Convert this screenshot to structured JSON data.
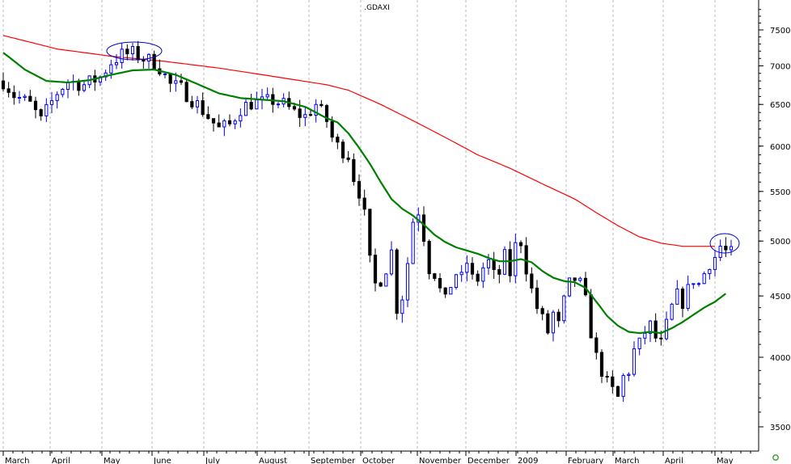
{
  "chart_data": {
    "type": "candlestick",
    "title": ".GDAXI",
    "y_scale": "log",
    "ylim": [
      3450,
      7900
    ],
    "y_ticks": [
      3500,
      4000,
      4500,
      5000,
      5500,
      6000,
      6500,
      7000,
      7500
    ],
    "y_tick_labels": [
      "3500",
      "4000",
      "4500",
      "5000",
      "5500",
      "6000",
      "6500",
      "7000",
      "7500"
    ],
    "x_tick_labels": [
      "March",
      "April",
      "May",
      "June",
      "July",
      "August",
      "September",
      "October",
      "November",
      "December",
      "2009",
      "February",
      "March",
      "April",
      "May"
    ],
    "grid": "vertical-dashed",
    "annotations": [
      "circle around May 2008 peak",
      "circle around May 2009 crossing of red moving average"
    ],
    "series": [
      {
        "kind": "ohlc",
        "up_color": "#0000ee",
        "down_color": "#000000",
        "anchors": [
          [
            0,
            6800
          ],
          [
            2,
            6620
          ],
          [
            5,
            6500
          ],
          [
            7,
            6300
          ],
          [
            10,
            6650
          ],
          [
            12,
            6800
          ],
          [
            15,
            6750
          ],
          [
            18,
            6850
          ],
          [
            20,
            7050
          ],
          [
            22,
            7150
          ],
          [
            24,
            7170
          ],
          [
            26,
            7100
          ],
          [
            28,
            7050
          ],
          [
            29,
            6980
          ],
          [
            31,
            6750
          ],
          [
            33,
            6700
          ],
          [
            36,
            6500
          ],
          [
            38,
            6350
          ],
          [
            40,
            6200
          ],
          [
            42,
            6250
          ],
          [
            44,
            6450
          ],
          [
            46,
            6520
          ],
          [
            48,
            6520
          ],
          [
            50,
            6550
          ],
          [
            52,
            6500
          ],
          [
            54,
            6400
          ],
          [
            56,
            6350
          ],
          [
            58,
            6500
          ],
          [
            60,
            6300
          ],
          [
            61,
            6100
          ],
          [
            62,
            6000
          ],
          [
            64,
            5900
          ],
          [
            65,
            5650
          ],
          [
            66,
            5500
          ],
          [
            67,
            5250
          ],
          [
            68,
            4800
          ],
          [
            69,
            4600
          ],
          [
            70,
            4650
          ],
          [
            71,
            4750
          ],
          [
            72,
            4900
          ],
          [
            73,
            4400
          ],
          [
            74,
            4500
          ],
          [
            75,
            4800
          ],
          [
            76,
            5200
          ],
          [
            77,
            5300
          ],
          [
            78,
            5050
          ],
          [
            79,
            4750
          ],
          [
            80,
            4700
          ],
          [
            81,
            4550
          ],
          [
            82,
            4450
          ],
          [
            83,
            4600
          ],
          [
            84,
            4700
          ],
          [
            85,
            4650
          ],
          [
            86,
            4800
          ],
          [
            87,
            4650
          ],
          [
            88,
            4650
          ],
          [
            89,
            4750
          ],
          [
            90,
            4800
          ],
          [
            91,
            4680
          ],
          [
            92,
            4700
          ],
          [
            93,
            4850
          ],
          [
            94,
            4700
          ],
          [
            95,
            4950
          ],
          [
            96,
            5000
          ],
          [
            97,
            4750
          ],
          [
            98,
            4550
          ],
          [
            99,
            4400
          ],
          [
            100,
            4300
          ],
          [
            101,
            4200
          ],
          [
            102,
            4350
          ],
          [
            103,
            4250
          ],
          [
            104,
            4450
          ],
          [
            105,
            4600
          ],
          [
            106,
            4650
          ],
          [
            107,
            4600
          ],
          [
            108,
            4450
          ],
          [
            109,
            4200
          ],
          [
            110,
            4000
          ],
          [
            111,
            3900
          ],
          [
            112,
            3800
          ],
          [
            113,
            3750
          ],
          [
            114,
            3700
          ],
          [
            115,
            3850
          ],
          [
            116,
            3900
          ],
          [
            117,
            4050
          ],
          [
            118,
            4100
          ],
          [
            119,
            4200
          ],
          [
            120,
            4250
          ],
          [
            121,
            4150
          ],
          [
            122,
            4100
          ],
          [
            123,
            4250
          ],
          [
            124,
            4400
          ],
          [
            125,
            4500
          ],
          [
            126,
            4450
          ],
          [
            127,
            4550
          ],
          [
            128,
            4650
          ],
          [
            129,
            4600
          ],
          [
            130,
            4700
          ],
          [
            131,
            4800
          ],
          [
            132,
            4850
          ],
          [
            133,
            4950
          ],
          [
            134,
            4900
          ],
          [
            135,
            4880
          ]
        ],
        "bar_count": 136,
        "bar_spacing_note": "weekly-like sampling, interpolated daily"
      },
      {
        "kind": "moving-average",
        "color": "#008000",
        "anchors": [
          [
            0,
            7180
          ],
          [
            4,
            6950
          ],
          [
            8,
            6800
          ],
          [
            12,
            6780
          ],
          [
            16,
            6810
          ],
          [
            20,
            6880
          ],
          [
            24,
            6940
          ],
          [
            28,
            6950
          ],
          [
            32,
            6880
          ],
          [
            36,
            6760
          ],
          [
            40,
            6640
          ],
          [
            44,
            6580
          ],
          [
            48,
            6560
          ],
          [
            52,
            6540
          ],
          [
            56,
            6470
          ],
          [
            60,
            6330
          ],
          [
            62,
            6280
          ],
          [
            64,
            6150
          ],
          [
            66,
            5980
          ],
          [
            68,
            5800
          ],
          [
            70,
            5600
          ],
          [
            72,
            5420
          ],
          [
            74,
            5320
          ],
          [
            76,
            5250
          ],
          [
            78,
            5160
          ],
          [
            80,
            5060
          ],
          [
            82,
            4990
          ],
          [
            84,
            4940
          ],
          [
            86,
            4910
          ],
          [
            88,
            4880
          ],
          [
            90,
            4840
          ],
          [
            92,
            4810
          ],
          [
            94,
            4810
          ],
          [
            96,
            4830
          ],
          [
            98,
            4800
          ],
          [
            100,
            4720
          ],
          [
            102,
            4660
          ],
          [
            104,
            4630
          ],
          [
            106,
            4620
          ],
          [
            108,
            4570
          ],
          [
            110,
            4450
          ],
          [
            112,
            4330
          ],
          [
            114,
            4250
          ],
          [
            116,
            4200
          ],
          [
            118,
            4190
          ],
          [
            120,
            4200
          ],
          [
            122,
            4190
          ],
          [
            124,
            4230
          ],
          [
            126,
            4280
          ],
          [
            128,
            4340
          ],
          [
            130,
            4400
          ],
          [
            132,
            4450
          ],
          [
            134,
            4520
          ]
        ]
      },
      {
        "kind": "moving-average",
        "color": "#ff0000",
        "anchors": [
          [
            0,
            7420
          ],
          [
            10,
            7230
          ],
          [
            20,
            7130
          ],
          [
            30,
            7060
          ],
          [
            40,
            6970
          ],
          [
            50,
            6860
          ],
          [
            60,
            6750
          ],
          [
            64,
            6680
          ],
          [
            70,
            6500
          ],
          [
            76,
            6300
          ],
          [
            82,
            6100
          ],
          [
            88,
            5900
          ],
          [
            94,
            5750
          ],
          [
            100,
            5580
          ],
          [
            106,
            5420
          ],
          [
            110,
            5280
          ],
          [
            114,
            5150
          ],
          [
            118,
            5040
          ],
          [
            122,
            4980
          ],
          [
            126,
            4950
          ],
          [
            130,
            4950
          ],
          [
            132,
            4950
          ]
        ]
      }
    ]
  }
}
